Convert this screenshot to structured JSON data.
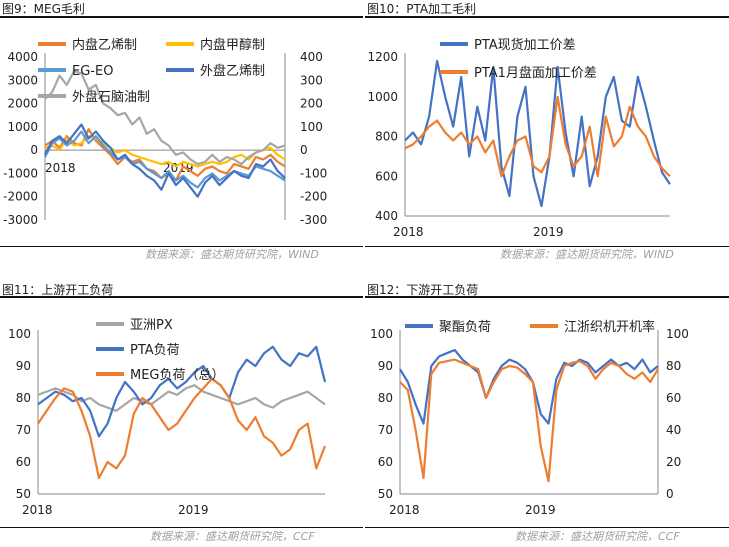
{
  "panels": [
    {
      "title": "图9：MEG毛利",
      "source": "数据来源：盛达期货研究院，WIND",
      "chart_data": {
        "type": "line",
        "x_labels": [
          "2018",
          "2019"
        ],
        "left_axis": {
          "ticks": [
            "4000",
            "3000",
            "2000",
            "1000",
            "0",
            "-1000",
            "-2000",
            "-3000"
          ],
          "ylim": [
            -3000,
            4000
          ]
        },
        "right_axis": {
          "ticks": [
            "400",
            "300",
            "200",
            "100",
            "0",
            "-100",
            "-200",
            "-300"
          ],
          "ylim": [
            -300,
            400
          ]
        },
        "series": [
          {
            "name": "内盘乙烯制",
            "color": "#ed7d31",
            "axis": "left",
            "values": [
              200,
              400,
              100,
              600,
              300,
              200,
              900,
              400,
              100,
              -200,
              -600,
              -300,
              -500,
              -400,
              -800,
              -900,
              -1200,
              -1000,
              -1300,
              -700,
              -900,
              -1100,
              -800,
              -700,
              -900,
              -1000,
              -600,
              -700,
              -800,
              -300,
              -400,
              -200,
              -500,
              -700
            ]
          },
          {
            "name": "内盘甲醇制",
            "color": "#ffc000",
            "axis": "left",
            "values": [
              100,
              200,
              0,
              500,
              200,
              300,
              600,
              500,
              300,
              100,
              -100,
              0,
              -200,
              -300,
              -400,
              -500,
              -600,
              -500,
              -700,
              -500,
              -600,
              -700,
              -600,
              -500,
              -600,
              -500,
              -300,
              -200,
              -400,
              -100,
              0,
              100,
              -200,
              -400
            ]
          },
          {
            "name": "EG-EO",
            "color": "#5b9bd5",
            "axis": "left",
            "values": [
              -300,
              300,
              500,
              200,
              400,
              800,
              300,
              600,
              200,
              -100,
              -400,
              -300,
              -600,
              -500,
              -800,
              -1000,
              -1200,
              -900,
              -1300,
              -1100,
              -1400,
              -1600,
              -1200,
              -1000,
              -1300,
              -1100,
              -900,
              -1000,
              -1100,
              -700,
              -800,
              -900,
              -1100,
              -1300
            ]
          },
          {
            "name": "外盘乙烯制",
            "color": "#4472c4",
            "axis": "right",
            "values": [
              -20,
              40,
              60,
              30,
              70,
              110,
              50,
              80,
              40,
              10,
              -40,
              -20,
              -60,
              -80,
              -110,
              -130,
              -170,
              -100,
              -150,
              -120,
              -160,
              -200,
              -140,
              -110,
              -150,
              -120,
              -90,
              -110,
              -120,
              -60,
              -70,
              -40,
              -90,
              -120
            ]
          },
          {
            "name": "外盘石脑油制",
            "color": "#a6a6a6",
            "axis": "right",
            "values": [
              220,
              250,
              320,
              280,
              340,
              330,
              260,
              280,
              200,
              180,
              150,
              160,
              110,
              140,
              70,
              90,
              40,
              20,
              -20,
              -10,
              -40,
              -60,
              -50,
              -20,
              -50,
              -30,
              -40,
              -60,
              -30,
              -10,
              0,
              30,
              10,
              20
            ]
          }
        ]
      }
    },
    {
      "title": "图10：PTA加工毛利",
      "source": "数据来源：盛达期货研究院，WIND",
      "chart_data": {
        "type": "line",
        "x_labels": [
          "2018",
          "2019"
        ],
        "left_axis": {
          "ticks": [
            "1200",
            "1000",
            "800",
            "600",
            "400"
          ],
          "ylim": [
            400,
            1200
          ]
        },
        "series": [
          {
            "name": "PTA现货加工价差",
            "color": "#4472c4",
            "values": [
              780,
              820,
              760,
              900,
              1180,
              1000,
              850,
              1100,
              700,
              950,
              780,
              1150,
              650,
              500,
              900,
              1050,
              600,
              450,
              700,
              1150,
              820,
              600,
              900,
              550,
              700,
              1000,
              1100,
              880,
              850,
              1100,
              950,
              780,
              620,
              560
            ]
          },
          {
            "name": "PTA1月盘面加工价差",
            "color": "#ed7d31",
            "values": [
              740,
              760,
              800,
              850,
              880,
              820,
              780,
              820,
              760,
              800,
              720,
              780,
              600,
              700,
              780,
              800,
              650,
              620,
              700,
              1000,
              760,
              650,
              700,
              850,
              600,
              900,
              750,
              800,
              950,
              850,
              800,
              700,
              640,
              600
            ]
          }
        ]
      }
    },
    {
      "title": "图11：上游开工负荷",
      "source": "数据来源：盛达期货研究院，CCF",
      "chart_data": {
        "type": "line",
        "x_labels": [
          "2018",
          "2019"
        ],
        "left_axis": {
          "ticks": [
            "100",
            "90",
            "80",
            "70",
            "60",
            "50"
          ],
          "ylim": [
            50,
            100
          ]
        },
        "series": [
          {
            "name": "亚洲PX",
            "color": "#a6a6a6",
            "values": [
              81,
              82,
              83,
              82,
              81,
              79,
              80,
              78,
              77,
              76,
              78,
              80,
              79,
              78,
              80,
              82,
              81,
              83,
              84,
              82,
              81,
              80,
              79,
              78,
              79,
              80,
              78,
              77,
              79,
              80,
              81,
              82,
              80,
              78
            ]
          },
          {
            "name": "PTA负荷",
            "color": "#4472c4",
            "values": [
              78,
              80,
              82,
              81,
              79,
              80,
              76,
              68,
              72,
              80,
              85,
              82,
              78,
              80,
              84,
              86,
              83,
              85,
              88,
              90,
              86,
              84,
              80,
              88,
              92,
              90,
              94,
              96,
              92,
              90,
              94,
              93,
              96,
              85
            ]
          },
          {
            "name": "MEG负荷（总）",
            "color": "#ed7d31",
            "values": [
              72,
              76,
              80,
              83,
              82,
              76,
              68,
              55,
              60,
              58,
              62,
              75,
              80,
              78,
              74,
              70,
              72,
              76,
              80,
              83,
              86,
              84,
              80,
              73,
              70,
              74,
              68,
              66,
              62,
              64,
              70,
              72,
              58,
              65
            ]
          }
        ]
      }
    },
    {
      "title": "图12：下游开工负荷",
      "source": "数据来源：盛达期货研究院，CCF",
      "chart_data": {
        "type": "line",
        "x_labels": [
          "2018",
          "2019"
        ],
        "left_axis": {
          "ticks": [
            "100",
            "90",
            "80",
            "70",
            "60",
            "50"
          ],
          "ylim": [
            50,
            100
          ]
        },
        "right_axis": {
          "ticks": [
            "100",
            "80",
            "60",
            "40",
            "20",
            "0"
          ],
          "ylim": [
            0,
            100
          ]
        },
        "series": [
          {
            "name": "聚酯负荷",
            "color": "#4472c4",
            "axis": "left",
            "values": [
              89,
              85,
              78,
              72,
              90,
              93,
              94,
              95,
              92,
              90,
              88,
              80,
              86,
              90,
              92,
              91,
              89,
              85,
              75,
              72,
              86,
              91,
              90,
              92,
              91,
              88,
              90,
              92,
              90,
              91,
              89,
              92,
              88,
              90
            ]
          },
          {
            "name": "江浙织机开机率",
            "color": "#ed7d31",
            "axis": "right",
            "values": [
              70,
              65,
              40,
              10,
              75,
              82,
              83,
              84,
              82,
              80,
              78,
              60,
              70,
              78,
              80,
              79,
              75,
              70,
              30,
              8,
              65,
              80,
              82,
              83,
              80,
              72,
              78,
              82,
              80,
              75,
              72,
              76,
              70,
              78
            ]
          }
        ]
      }
    }
  ]
}
